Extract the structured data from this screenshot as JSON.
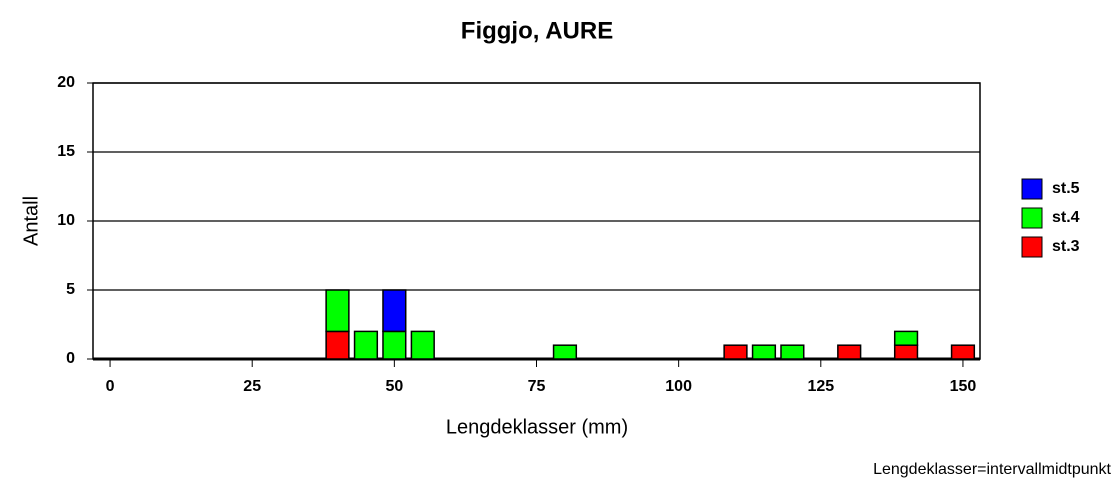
{
  "chart_data": {
    "type": "bar",
    "title": "Figgjo, AURE",
    "x_label": "Lengdeklasser (mm)",
    "y_label": "Antall",
    "annotation": "Lengdeklasser=intervallmidtpunkt",
    "x": [
      40,
      45,
      50,
      55,
      80,
      110,
      115,
      120,
      130,
      140,
      150
    ],
    "bar_width": 4,
    "series": [
      {
        "name": "st.3",
        "color": "#ff0000",
        "values": [
          2,
          0,
          0,
          0,
          0,
          1,
          0,
          0,
          1,
          1,
          1
        ]
      },
      {
        "name": "st.4",
        "color": "#00ff00",
        "values": [
          3,
          2,
          2,
          2,
          1,
          0,
          1,
          1,
          0,
          1,
          0
        ]
      },
      {
        "name": "st.5",
        "color": "#0000ff",
        "values": [
          0,
          0,
          3,
          0,
          0,
          0,
          0,
          0,
          0,
          0,
          0
        ]
      }
    ],
    "stacked": true,
    "xlim": [
      -3,
      153
    ],
    "ylim": [
      0,
      20
    ],
    "xticks": [
      0,
      25,
      50,
      75,
      100,
      125,
      150
    ],
    "yticks": [
      0,
      5,
      10,
      15,
      20
    ],
    "grid": true,
    "legend": "right"
  }
}
